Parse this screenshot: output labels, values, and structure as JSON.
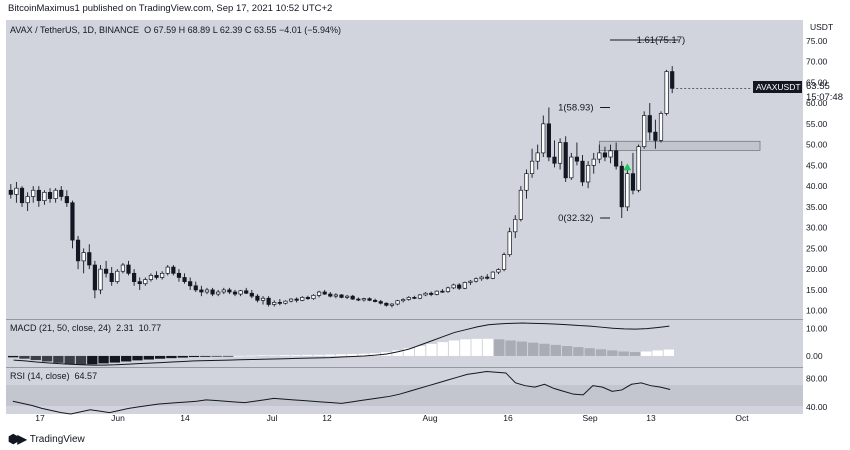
{
  "header": {
    "publisher_line": "BitcoinMaximus1 published on TradingView.com, Sep 17, 2021 10:52 UTC+2"
  },
  "legend": {
    "symbol": "AVAX / TetherUS, 1D, BINANCE",
    "open_label": "O",
    "open": "67.59",
    "high_label": "H",
    "high": "68.89",
    "low_label": "L",
    "low": "62.39",
    "close_label": "C",
    "close": "63.55",
    "change": "−4.01 (−5.94%)"
  },
  "macd_legend": {
    "text": "MACD (21, 50, close, 24)",
    "v1": "2.31",
    "v2": "10.77"
  },
  "rsi_legend": {
    "text": "RSI (14, close)",
    "v1": "64.57"
  },
  "price_tag": {
    "symbol": "AVAXUSDT",
    "value": "63.55",
    "time": "15:07:48"
  },
  "axis_unit": "USDT",
  "footer": {
    "brand": "TradingView"
  },
  "colors": {
    "up": "#ffffff",
    "down": "#131722",
    "background": "#d1d4dc",
    "support_box": "#c2c5cc",
    "arrow": "#22c55e"
  },
  "chart_data": [
    {
      "type": "candlestick",
      "title": "AVAX / TetherUS, 1D, BINANCE",
      "ylabel": "USDT",
      "y_ticks": [
        10,
        15,
        20,
        25,
        30,
        35,
        40,
        45,
        50,
        55,
        60,
        65,
        70,
        75
      ],
      "y_tick_labels": [
        "10.00",
        "15.00",
        "20.00",
        "25.00",
        "30.00",
        "35.00",
        "40.00",
        "45.00",
        "50.00",
        "55.00",
        "60.00",
        "65.00",
        "70.00",
        "75.00"
      ],
      "x_tick_labels": [
        "17",
        "Jun",
        "14",
        "Jul",
        "12",
        "Aug",
        "16",
        "Sep",
        "13",
        "Oct"
      ],
      "ylim": [
        8,
        80
      ],
      "annotations": [
        {
          "label": "1.61(75.17)",
          "value": 75.17
        },
        {
          "label": "1(58.93)",
          "value": 58.93
        },
        {
          "label": "0(32.32)",
          "value": 32.32
        }
      ],
      "support_zone": [
        48.6,
        50.8
      ],
      "last_close": 63.55,
      "candles": [
        [
          39,
          40.5,
          37,
          38
        ],
        [
          38,
          41,
          36,
          39.5
        ],
        [
          39.5,
          40,
          35,
          36
        ],
        [
          36,
          38.5,
          34,
          37.5
        ],
        [
          37.5,
          40,
          36,
          39
        ],
        [
          39,
          40,
          35,
          36.5
        ],
        [
          36.5,
          39,
          35.5,
          38.5
        ],
        [
          38.5,
          39.5,
          36,
          37
        ],
        [
          37,
          39.5,
          36,
          39
        ],
        [
          39,
          40,
          36.5,
          37.5
        ],
        [
          37.5,
          39,
          35,
          36
        ],
        [
          36,
          36.5,
          25,
          27
        ],
        [
          27,
          28,
          20,
          22
        ],
        [
          22,
          25,
          19,
          24
        ],
        [
          24,
          26,
          20,
          21
        ],
        [
          21,
          22,
          13,
          15
        ],
        [
          15,
          21,
          14,
          20
        ],
        [
          20,
          22,
          18,
          19
        ],
        [
          19,
          20.5,
          16,
          17
        ],
        [
          17,
          20,
          16.5,
          19.5
        ],
        [
          19.5,
          21.5,
          19,
          21
        ],
        [
          21,
          22,
          18.5,
          19
        ],
        [
          19,
          20,
          16,
          17
        ],
        [
          17,
          18,
          15,
          16.5
        ],
        [
          16.5,
          18,
          16,
          17.5
        ],
        [
          17.5,
          19,
          17,
          18.5
        ],
        [
          18.5,
          19.5,
          17.5,
          18
        ],
        [
          18,
          19.5,
          17.5,
          19
        ],
        [
          19,
          21,
          18.5,
          20.5
        ],
        [
          20.5,
          21,
          18.5,
          19
        ],
        [
          19,
          20,
          17,
          18
        ],
        [
          18,
          19,
          16.5,
          17
        ],
        [
          17,
          18,
          15,
          16
        ],
        [
          16,
          17,
          14.5,
          15
        ],
        [
          15,
          16,
          13.5,
          14.5
        ],
        [
          14.5,
          15.5,
          14,
          15
        ],
        [
          15,
          15.5,
          13.5,
          14
        ],
        [
          14,
          15,
          13.5,
          14.5
        ],
        [
          14.5,
          15.5,
          14,
          15
        ],
        [
          15,
          15.5,
          14,
          14.5
        ],
        [
          14.5,
          15,
          13.5,
          14
        ],
        [
          14,
          15,
          13.5,
          14.8
        ],
        [
          14.8,
          15.5,
          14,
          14.2
        ],
        [
          14.2,
          15,
          13,
          13.5
        ],
        [
          13.5,
          14,
          12,
          12.5
        ],
        [
          12.5,
          13.5,
          11.5,
          13
        ],
        [
          13,
          13.5,
          11,
          11.5
        ],
        [
          11.5,
          12.5,
          11,
          12
        ],
        [
          12,
          12.8,
          11.3,
          11.8
        ],
        [
          11.8,
          12.5,
          11.5,
          12.3
        ],
        [
          12.3,
          13,
          12,
          12.8
        ],
        [
          12.8,
          13.2,
          12,
          12.5
        ],
        [
          12.5,
          13.5,
          12.3,
          13.2
        ],
        [
          13.2,
          13.6,
          12.6,
          12.9
        ],
        [
          12.9,
          14,
          12.6,
          13.7
        ],
        [
          13.7,
          14.8,
          13.2,
          14.5
        ],
        [
          14.5,
          15,
          13.8,
          14
        ],
        [
          14,
          14.5,
          13.2,
          13.5
        ],
        [
          13.5,
          14.2,
          13,
          13.8
        ],
        [
          13.8,
          14,
          13,
          13.2
        ],
        [
          13.2,
          13.8,
          12.8,
          13.5
        ],
        [
          13.5,
          13.8,
          12.6,
          12.8
        ],
        [
          12.8,
          13.2,
          12.3,
          12.6
        ],
        [
          12.6,
          13.1,
          12.2,
          12.9
        ],
        [
          12.9,
          13.2,
          12.3,
          12.5
        ],
        [
          12.5,
          12.9,
          12,
          12.2
        ],
        [
          12.2,
          12.6,
          11.5,
          11.8
        ],
        [
          11.8,
          12,
          11,
          11.3
        ],
        [
          11.3,
          11.8,
          10.8,
          11.6
        ],
        [
          11.6,
          12.6,
          11.3,
          12.4
        ],
        [
          12.4,
          13,
          12,
          12.7
        ],
        [
          12.7,
          13.5,
          12.4,
          13.2
        ],
        [
          13.2,
          13.6,
          12.8,
          13
        ],
        [
          13,
          14,
          12.8,
          13.8
        ],
        [
          13.8,
          14.5,
          13.5,
          14.2
        ],
        [
          14.2,
          14.6,
          13.5,
          13.9
        ],
        [
          13.9,
          14.9,
          13.7,
          14.7
        ],
        [
          14.7,
          15.2,
          14.3,
          14.6
        ],
        [
          14.6,
          15.8,
          14.3,
          15.5
        ],
        [
          15.5,
          16.5,
          15.2,
          16.2
        ],
        [
          16.2,
          16.6,
          15,
          15.4
        ],
        [
          15.4,
          17,
          15.2,
          16.8
        ],
        [
          16.8,
          17.4,
          16.2,
          17.1
        ],
        [
          17.1,
          18,
          16.8,
          17.7
        ],
        [
          17.7,
          18.4,
          17.2,
          18.1
        ],
        [
          18.1,
          18.8,
          17.5,
          17.8
        ],
        [
          17.8,
          19.5,
          17.6,
          19.3
        ],
        [
          19.3,
          20.2,
          18.8,
          19.9
        ],
        [
          19.9,
          24,
          19.5,
          23.5
        ],
        [
          23.5,
          30,
          23,
          29
        ],
        [
          29,
          33,
          27.5,
          32
        ],
        [
          32,
          40,
          31.5,
          39
        ],
        [
          39,
          44,
          37,
          43
        ],
        [
          43,
          49,
          42,
          46
        ],
        [
          46,
          50,
          44,
          48
        ],
        [
          48,
          57,
          47,
          55
        ],
        [
          55,
          58.93,
          46,
          47
        ],
        [
          47,
          51,
          44.5,
          45.5
        ],
        [
          45.5,
          51.5,
          44,
          50.5
        ],
        [
          50.5,
          52,
          41,
          42
        ],
        [
          42,
          48,
          41.5,
          47
        ],
        [
          47,
          50.5,
          45,
          46
        ],
        [
          46,
          47.5,
          40,
          41
        ],
        [
          41,
          46,
          39.5,
          45
        ],
        [
          45,
          48,
          43,
          46.5
        ],
        [
          46.5,
          50,
          45.5,
          48
        ],
        [
          48,
          49.5,
          46,
          47
        ],
        [
          47,
          50,
          45.5,
          48.5
        ],
        [
          48.5,
          50.5,
          44,
          44.8
        ],
        [
          44.8,
          46,
          32.32,
          35
        ],
        [
          35,
          44,
          34,
          43
        ],
        [
          43,
          48,
          38,
          39
        ],
        [
          39,
          50,
          38.5,
          49.5
        ],
        [
          49.5,
          58,
          49,
          57
        ],
        [
          57,
          60,
          51,
          53
        ],
        [
          53,
          56,
          49,
          51
        ],
        [
          51,
          58,
          50.5,
          57.5
        ],
        [
          57.5,
          68,
          57,
          67.59
        ],
        [
          67.59,
          68.89,
          62.39,
          63.55
        ]
      ]
    },
    {
      "type": "line",
      "title": "MACD (21, 50, close, 24)",
      "y_tick_labels": [
        "0.00",
        "10.00"
      ],
      "macd_line": [
        -1.5,
        -1.8,
        -2.2,
        -2.5,
        -2.8,
        -3.0,
        -3.2,
        -3.3,
        -3.3,
        -3.2,
        -3.0,
        -2.8,
        -2.6,
        -2.4,
        -2.2,
        -2.0,
        -1.8,
        -1.7,
        -1.6,
        -1.5,
        -1.4,
        -1.3,
        -1.2,
        -1.1,
        -1.0,
        -0.9,
        -0.8,
        -0.7,
        -0.6,
        -0.4,
        -0.2,
        0.0,
        0.3,
        0.7,
        1.5,
        2.5,
        4.0,
        5.5,
        7.0,
        8.5,
        9.5,
        10.5,
        11.3,
        11.6,
        11.8,
        11.9,
        11.8,
        11.7,
        11.5,
        11.3,
        11.0,
        10.8,
        10.4,
        10.0,
        9.8,
        9.7,
        9.9,
        10.3,
        10.77
      ],
      "histogram": [
        -0.5,
        -1.0,
        -1.5,
        -2.0,
        -2.5,
        -3.0,
        -3.2,
        -3.0,
        -2.7,
        -2.4,
        -2.0,
        -1.6,
        -1.3,
        -1.0,
        -0.8,
        -0.6,
        -0.4,
        -0.3,
        -0.2,
        -0.1,
        0.0,
        0.1,
        0.2,
        0.2,
        0.3,
        0.3,
        0.4,
        0.4,
        0.5,
        0.6,
        0.7,
        0.8,
        1.0,
        1.4,
        2.0,
        2.8,
        3.6,
        4.3,
        5.0,
        5.6,
        6.0,
        6.2,
        6.2,
        6.0,
        5.6,
        5.2,
        4.8,
        4.4,
        4.0,
        3.6,
        3.2,
        2.8,
        2.4,
        2.0,
        1.6,
        1.4,
        1.6,
        2.0,
        2.31
      ]
    },
    {
      "type": "line",
      "title": "RSI (14, close)",
      "y_tick_labels": [
        "40.00",
        "80.00"
      ],
      "ylim": [
        30,
        95
      ],
      "values": [
        48,
        45,
        42,
        38,
        35,
        32,
        30,
        33,
        36,
        34,
        32,
        35,
        38,
        40,
        42,
        44,
        45,
        46,
        47,
        48,
        50,
        49,
        48,
        47,
        46,
        48,
        50,
        52,
        51,
        50,
        49,
        48,
        47,
        46,
        45,
        47,
        49,
        51,
        53,
        55,
        58,
        62,
        66,
        70,
        74,
        78,
        82,
        86,
        88,
        90,
        89,
        88,
        74,
        70,
        68,
        72,
        66,
        62,
        58,
        57,
        70,
        68,
        62,
        64,
        72,
        74,
        70,
        68,
        64.57
      ]
    }
  ]
}
